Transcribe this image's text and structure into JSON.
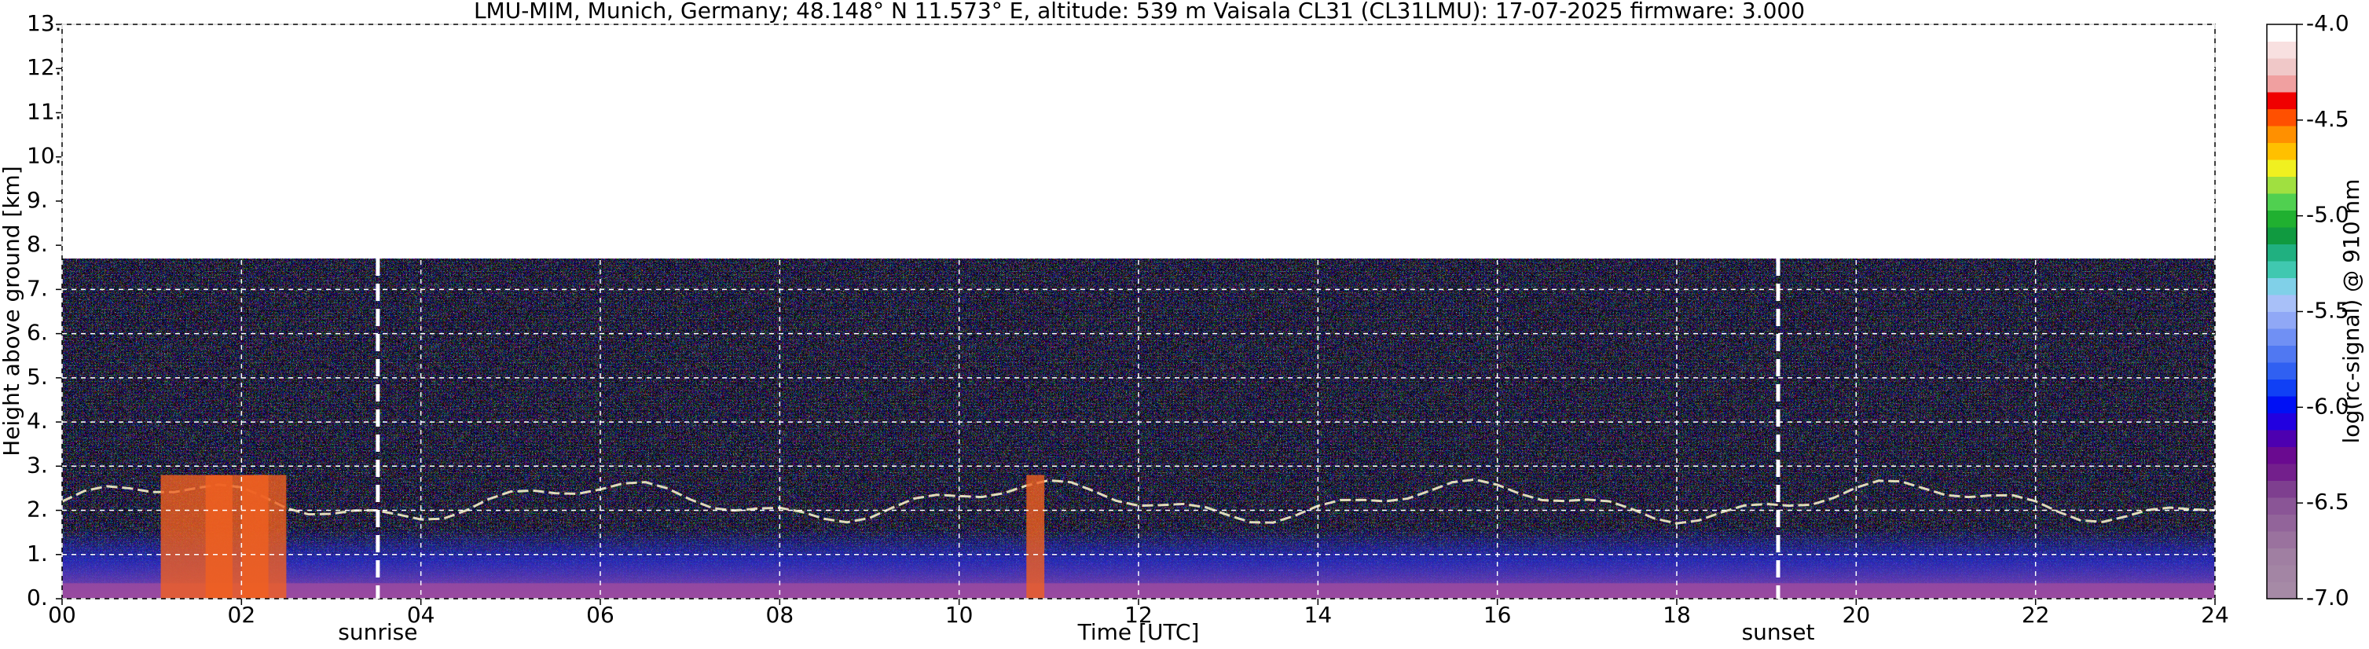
{
  "chart_data": {
    "type": "heatmap",
    "title": "LMU-MIM, Munich, Germany; 48.148° N 11.573° E, altitude: 539 m    Vaisala CL31 (CL31LMU): 17-07-2025    firmware: 3.000",
    "x_label": "Time [UTC]",
    "y_label": "Height above ground [km]",
    "xlim": [
      0,
      24
    ],
    "xticks": [
      {
        "value": 0,
        "label": "00"
      },
      {
        "value": 2,
        "label": "02"
      },
      {
        "value": 4,
        "label": "04"
      },
      {
        "value": 6,
        "label": "06"
      },
      {
        "value": 8,
        "label": "08"
      },
      10,
      12,
      14,
      16,
      18,
      20,
      22,
      24
    ],
    "ylim": [
      0,
      13
    ],
    "yticks": [
      {
        "value": 0,
        "label": "0."
      },
      {
        "value": 1,
        "label": "1."
      },
      {
        "value": 2,
        "label": "2."
      },
      {
        "value": 3,
        "label": "3."
      },
      {
        "value": 4,
        "label": "4."
      },
      {
        "value": 5,
        "label": "5."
      },
      {
        "value": 6,
        "label": "6."
      },
      {
        "value": 7,
        "label": "7."
      },
      {
        "value": 8,
        "label": "8."
      },
      {
        "value": 9,
        "label": "9."
      },
      {
        "value": 10,
        "label": "10."
      },
      {
        "value": 11,
        "label": "11."
      },
      {
        "value": 12,
        "label": "12."
      },
      {
        "value": 13,
        "label": "13."
      }
    ],
    "grid": true,
    "grid_color": "#ffffff",
    "markers": [
      {
        "label": "sunrise",
        "x": 3.52
      },
      {
        "label": "sunset",
        "x": 19.13
      }
    ],
    "colorbar": {
      "label": "log(rc-signal) @ 910 nm",
      "clim": [
        -7,
        -4
      ],
      "ticks": [
        {
          "value": -7,
          "label": "-7.0"
        },
        {
          "value": -6.5,
          "label": "-6.5"
        },
        {
          "value": -6,
          "label": "-6.0"
        },
        {
          "value": -5.5,
          "label": "-5.5"
        },
        {
          "value": -5,
          "label": "-5.0"
        },
        {
          "value": -4.5,
          "label": "-4.5"
        },
        {
          "value": -4,
          "label": "-4.0"
        }
      ],
      "colors": [
        "#a68aa6",
        "#a385a4",
        "#a07fa2",
        "#9a729e",
        "#92649a",
        "#8a5596",
        "#7e3f8f",
        "#731f8c",
        "#6a0a90",
        "#4d00b0",
        "#2200e0",
        "#0010f5",
        "#1040f5",
        "#3060f2",
        "#5078f2",
        "#7090f4",
        "#90a8f6",
        "#a8c0f8",
        "#80d0e8",
        "#40c8b0",
        "#20b080",
        "#109a40",
        "#20b030",
        "#50d050",
        "#a0e040",
        "#f0f020",
        "#ffc000",
        "#ff9000",
        "#ff5000",
        "#f00000",
        "#f0a0a0",
        "#f0c8c8",
        "#f8e0e0",
        "#ffffff"
      ]
    }
  }
}
